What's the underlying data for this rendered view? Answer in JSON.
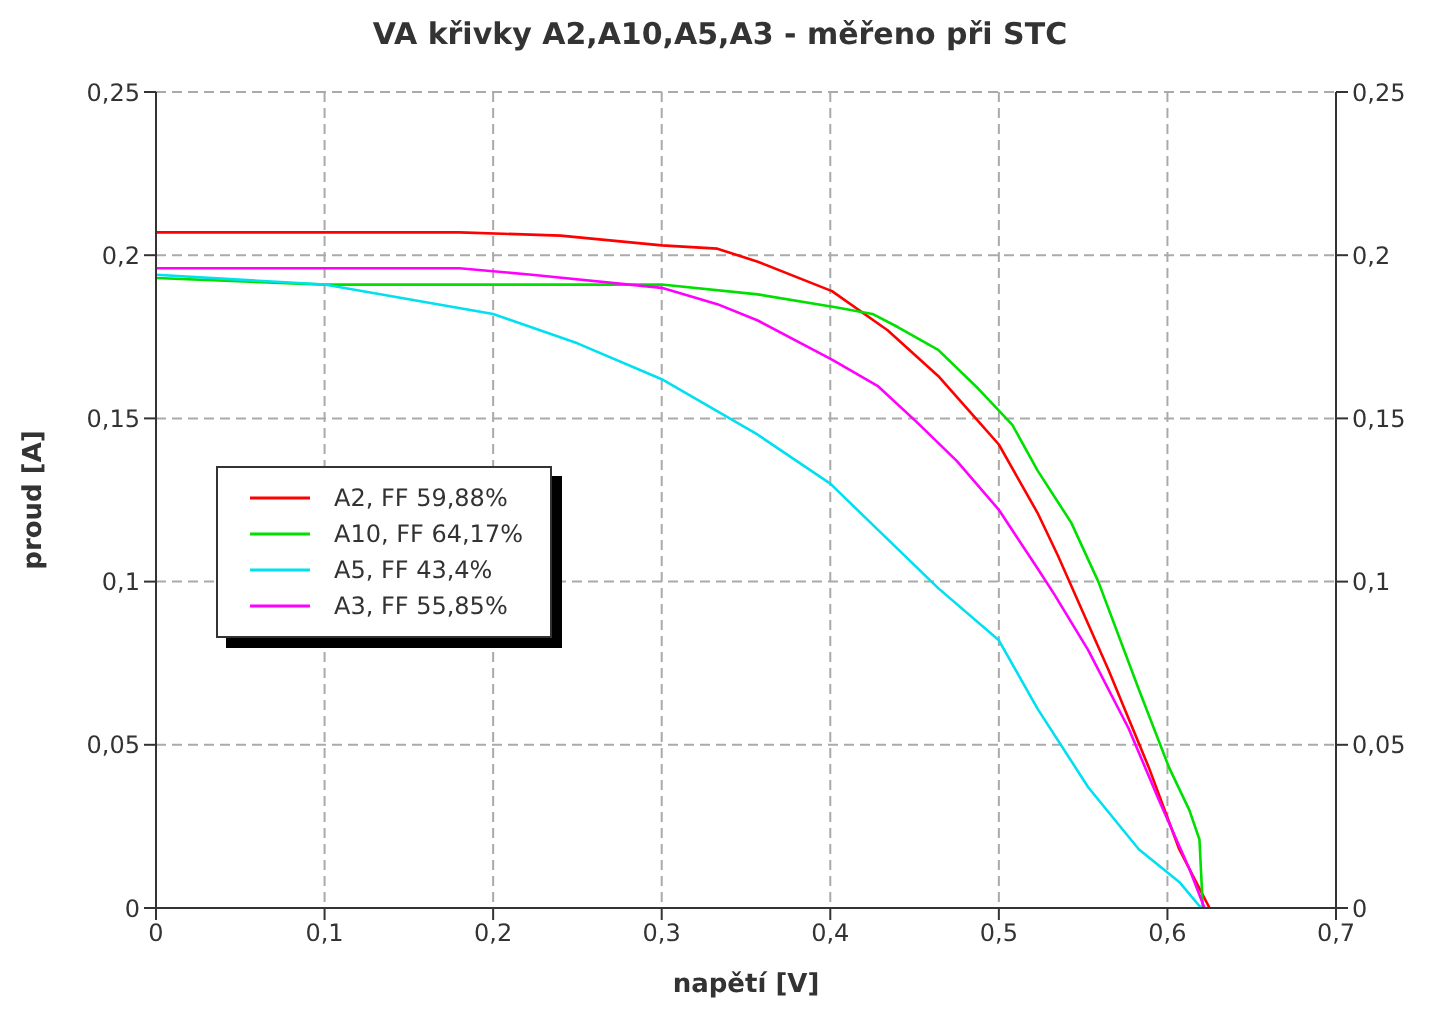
{
  "chart_data": {
    "type": "line",
    "title": "VA křivky A2,A10,A5,A3 - měřeno při STC",
    "xlabel": "napětí [V]",
    "ylabel": "proud [A]",
    "xlim": [
      0,
      0.7
    ],
    "xticks": [
      0,
      {
        "value": 0.1,
        "label": "0,1"
      },
      {
        "value": 0.2,
        "label": "0,2"
      },
      {
        "value": 0.3,
        "label": "0,3"
      },
      {
        "value": 0.4,
        "label": "0,4"
      },
      {
        "value": 0.5,
        "label": "0,5"
      },
      {
        "value": 0.6,
        "label": "0,6"
      },
      {
        "value": 0.7,
        "label": "0,7"
      }
    ],
    "ylim": [
      0,
      0.25
    ],
    "yticks": [
      0,
      {
        "value": 0.05,
        "label": "0,05"
      },
      {
        "value": 0.1,
        "label": "0,1"
      },
      {
        "value": 0.15,
        "label": "0,15"
      },
      {
        "value": 0.2,
        "label": "0,2"
      },
      {
        "value": 0.25,
        "label": "0,25"
      }
    ],
    "y2lim": [
      0,
      0.25
    ],
    "y2ticks": [
      0,
      {
        "value": 0.05,
        "label": "0,05"
      },
      {
        "value": 0.1,
        "label": "0,1"
      },
      {
        "value": 0.15,
        "label": "0,15"
      },
      {
        "value": 0.2,
        "label": "0,2"
      },
      {
        "value": 0.25,
        "label": "0,25"
      }
    ],
    "grid": true,
    "legend": "left",
    "marker": "none",
    "line_style": "solid",
    "series": [
      {
        "name": "A2, FF 59,88%",
        "color": "#ff0000",
        "x": [
          0,
          0.18,
          0.24,
          0.3,
          0.333,
          0.357,
          0.401,
          0.434,
          0.464,
          0.488,
          0.5,
          0.523,
          0.535,
          0.547,
          0.565,
          0.589,
          0.607,
          0.625
        ],
        "values": [
          0.207,
          0.207,
          0.206,
          0.203,
          0.202,
          0.198,
          0.189,
          0.177,
          0.163,
          0.149,
          0.142,
          0.121,
          0.108,
          0.094,
          0.073,
          0.043,
          0.018,
          0
        ]
      },
      {
        "name": "A10, FF 64,17%",
        "color": "#00e000",
        "x": [
          0,
          0.1,
          0.3,
          0.357,
          0.404,
          0.425,
          0.44,
          0.464,
          0.488,
          0.508,
          0.523,
          0.543,
          0.559,
          0.583,
          0.601,
          0.613,
          0.619,
          0.621
        ],
        "values": [
          0.193,
          0.191,
          0.191,
          0.188,
          0.184,
          0.182,
          0.178,
          0.171,
          0.159,
          0.148,
          0.134,
          0.118,
          0.1,
          0.067,
          0.043,
          0.03,
          0.021,
          0
        ]
      },
      {
        "name": "A5, FF 43,4%",
        "color": "#00e0f0",
        "x": [
          0,
          0.1,
          0.2,
          0.25,
          0.3,
          0.357,
          0.4,
          0.428,
          0.464,
          0.5,
          0.523,
          0.553,
          0.583,
          0.607,
          0.62
        ],
        "values": [
          0.194,
          0.191,
          0.182,
          0.173,
          0.162,
          0.145,
          0.13,
          0.116,
          0.098,
          0.082,
          0.061,
          0.037,
          0.018,
          0.008,
          0
        ]
      },
      {
        "name": "A3, FF 55,85%",
        "color": "#ff00ff",
        "x": [
          0,
          0.18,
          0.223,
          0.3,
          0.333,
          0.357,
          0.401,
          0.428,
          0.451,
          0.475,
          0.5,
          0.523,
          0.533,
          0.553,
          0.577,
          0.595,
          0.613,
          0.622
        ],
        "values": [
          0.196,
          0.196,
          0.194,
          0.19,
          0.185,
          0.18,
          0.168,
          0.16,
          0.149,
          0.137,
          0.122,
          0.104,
          0.096,
          0.079,
          0.055,
          0.033,
          0.012,
          0
        ]
      }
    ]
  }
}
